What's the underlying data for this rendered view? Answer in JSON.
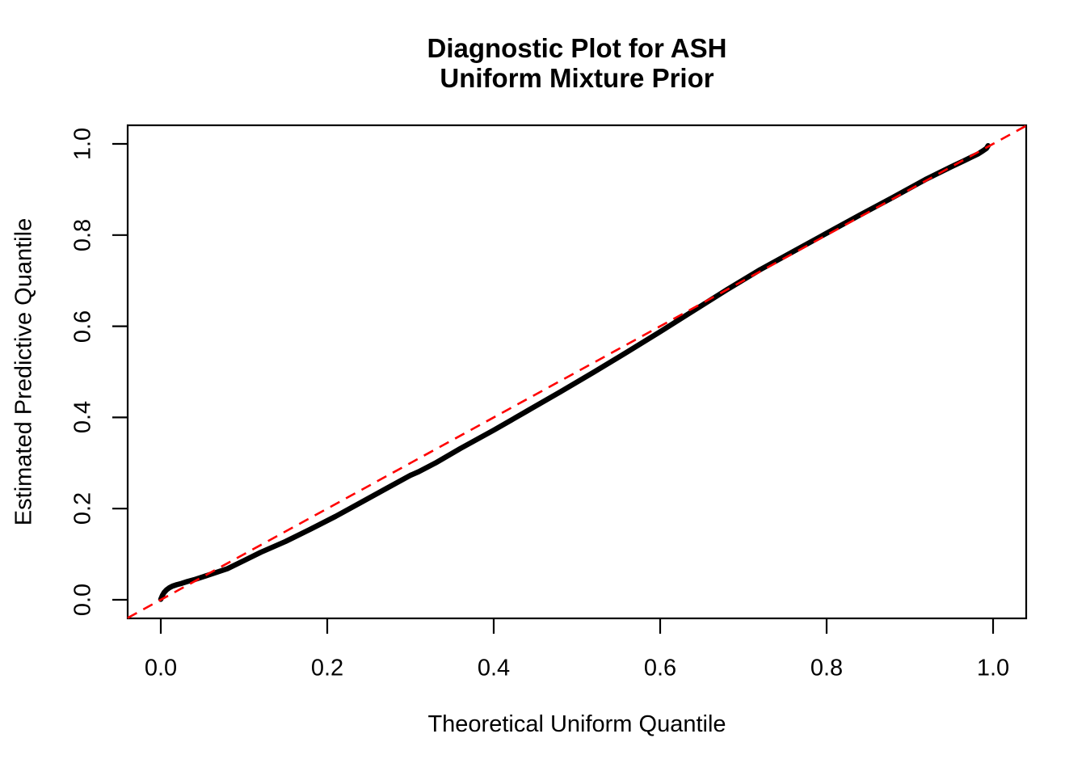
{
  "figure": {
    "background_color": "#FFFFFF",
    "text_color": "#000000"
  },
  "title": {
    "line1": "Diagnostic Plot for ASH",
    "line2": "Uniform Mixture Prior"
  },
  "chart_data": {
    "type": "scatter",
    "title": "Diagnostic Plot for ASH / Uniform Mixture Prior",
    "xlabel": "Theoretical Uniform Quantile",
    "ylabel": "Estimated Predictive Quantile",
    "xlim": [
      -0.04,
      1.04
    ],
    "ylim": [
      -0.04,
      1.04
    ],
    "grid": false,
    "legend": "none",
    "x_ticks": {
      "values": [
        0.0,
        0.2,
        0.4,
        0.6,
        0.8,
        1.0
      ],
      "labels": [
        "0.0",
        "0.2",
        "0.4",
        "0.6",
        "0.8",
        "1.0"
      ]
    },
    "y_ticks": {
      "values": [
        0.0,
        0.2,
        0.4,
        0.6,
        0.8,
        1.0
      ],
      "labels": [
        "0.0",
        "0.2",
        "0.4",
        "0.6",
        "0.8",
        "1.0"
      ]
    },
    "series": [
      {
        "name": "estimated-predictive-quantiles",
        "color": "#000000",
        "style": "thick-point-curve",
        "points": [
          [
            0.0,
            0.001
          ],
          [
            0.002,
            0.01
          ],
          [
            0.004,
            0.016
          ],
          [
            0.007,
            0.022
          ],
          [
            0.01,
            0.026
          ],
          [
            0.014,
            0.03
          ],
          [
            0.019,
            0.033
          ],
          [
            0.025,
            0.036
          ],
          [
            0.032,
            0.04
          ],
          [
            0.04,
            0.044
          ],
          [
            0.05,
            0.05
          ],
          [
            0.06,
            0.056
          ],
          [
            0.08,
            0.068
          ],
          [
            0.1,
            0.086
          ],
          [
            0.12,
            0.104
          ],
          [
            0.15,
            0.128
          ],
          [
            0.18,
            0.155
          ],
          [
            0.21,
            0.183
          ],
          [
            0.24,
            0.213
          ],
          [
            0.27,
            0.243
          ],
          [
            0.3,
            0.273
          ],
          [
            0.31,
            0.281
          ],
          [
            0.33,
            0.3
          ],
          [
            0.36,
            0.332
          ],
          [
            0.4,
            0.372
          ],
          [
            0.44,
            0.414
          ],
          [
            0.48,
            0.456
          ],
          [
            0.52,
            0.499
          ],
          [
            0.56,
            0.543
          ],
          [
            0.6,
            0.588
          ],
          [
            0.64,
            0.634
          ],
          [
            0.68,
            0.68
          ],
          [
            0.72,
            0.724
          ],
          [
            0.76,
            0.764
          ],
          [
            0.8,
            0.804
          ],
          [
            0.84,
            0.844
          ],
          [
            0.88,
            0.883
          ],
          [
            0.92,
            0.923
          ],
          [
            0.95,
            0.95
          ],
          [
            0.965,
            0.963
          ],
          [
            0.975,
            0.972
          ],
          [
            0.982,
            0.978
          ],
          [
            0.988,
            0.985
          ],
          [
            0.992,
            0.99
          ],
          [
            0.994,
            0.996
          ]
        ]
      }
    ],
    "reference_line": {
      "name": "identity-line",
      "slope": 1,
      "intercept": 0,
      "color": "#FF0000",
      "style": "dashed"
    }
  }
}
